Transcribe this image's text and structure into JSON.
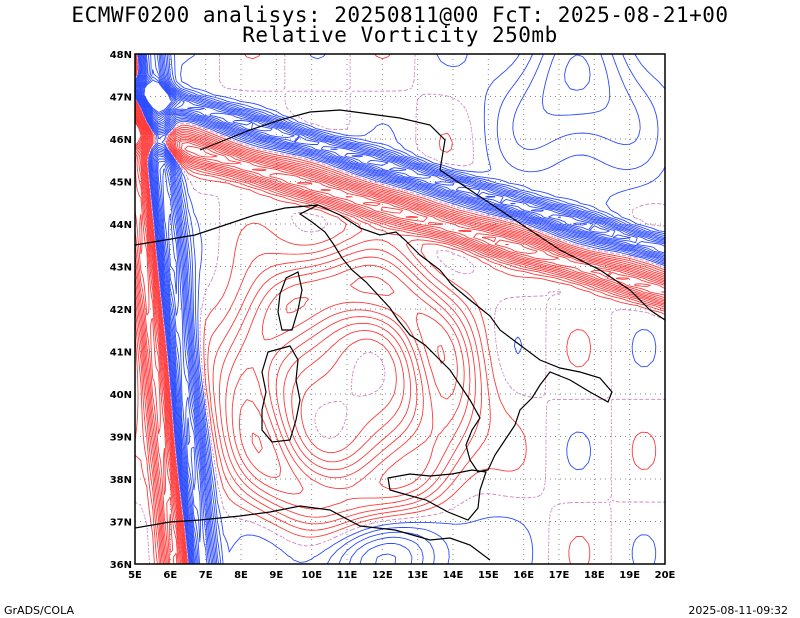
{
  "title_line1": "ECMWF0200 analisys: 20250811@00 FcT: 2025-08-21+00",
  "title_line2": "Relative Vorticity 250mb",
  "footer_left": "GrADS/COLA",
  "footer_right": "2025-08-11-09:32",
  "map": {
    "lon_range": [
      5,
      20
    ],
    "lat_range": [
      36,
      48
    ],
    "lon_ticks": [
      "5E",
      "6E",
      "7E",
      "8E",
      "9E",
      "10E",
      "11E",
      "12E",
      "13E",
      "14E",
      "15E",
      "16E",
      "17E",
      "18E",
      "19E",
      "20E"
    ],
    "lat_ticks": [
      "36N",
      "37N",
      "38N",
      "39N",
      "40N",
      "41N",
      "42N",
      "43N",
      "44N",
      "45N",
      "46N",
      "47N",
      "48N"
    ],
    "colors": {
      "positive": "#ff3b3b",
      "negative": "#2b4bff",
      "zero": "#d080c0",
      "coast": "#000000",
      "grid": "#888888"
    },
    "field_type": "contour"
  }
}
